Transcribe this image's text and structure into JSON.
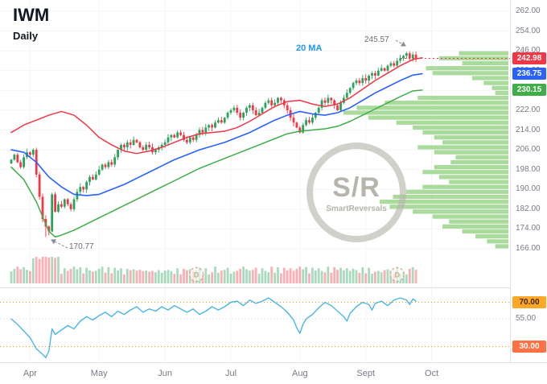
{
  "colors": {
    "up_candle": "#2aa25a",
    "down_candle": "#f23645",
    "ma20_line": "#2962ff",
    "upper_line": "#f23645",
    "lower_line": "#3fae49",
    "rsi_line": "#4db6e5",
    "volume_profile": "#9ed690",
    "axis_text": "#787b86",
    "grid": "#f2f4f7",
    "separator": "#e0e3eb",
    "annotation": "#8a8d97",
    "event_marker": "#cdb089",
    "watermark": "#b9b7ae"
  },
  "chart_data": {
    "type": "candlestick",
    "title": "IWM Daily",
    "symbol": "IWM",
    "timeframe": "Daily",
    "ma_label": "20 MA",
    "last_price": 242.98,
    "y_axis": {
      "ticks": [
        262,
        254,
        246,
        238,
        230,
        222,
        214,
        206,
        198,
        190,
        182,
        174,
        166
      ],
      "visible_range": [
        164,
        264
      ]
    },
    "x_axis": {
      "months": [
        {
          "label": "Apr",
          "index": 6
        },
        {
          "label": "May",
          "index": 28
        },
        {
          "label": "Jun",
          "index": 49
        },
        {
          "label": "Jul",
          "index": 70
        },
        {
          "label": "Aug",
          "index": 92
        },
        {
          "label": "Sept",
          "index": 113
        },
        {
          "label": "Oct",
          "index": 134
        }
      ]
    },
    "closes": [
      202,
      204,
      201,
      199,
      203,
      205,
      204,
      206,
      196,
      187,
      178,
      175,
      173,
      188,
      181,
      184,
      183,
      186,
      184,
      182,
      186,
      189,
      191,
      190,
      193,
      195,
      194,
      196,
      198,
      200,
      199,
      201,
      200,
      203,
      206,
      208,
      207,
      209,
      208,
      210,
      209,
      207,
      206,
      208,
      207,
      205,
      206,
      207,
      208,
      209,
      211,
      212,
      211,
      213,
      212,
      210,
      209,
      211,
      210,
      212,
      214,
      213,
      215,
      216,
      215,
      217,
      218,
      217,
      219,
      221,
      222,
      223,
      221,
      219,
      221,
      223,
      224,
      222,
      220,
      221,
      223,
      225,
      226,
      224,
      225,
      227,
      226,
      224,
      222,
      219,
      217,
      215,
      213,
      216,
      218,
      217,
      219,
      221,
      223,
      226,
      225,
      227,
      226,
      224,
      222,
      225,
      227,
      229,
      231,
      233,
      234,
      233,
      235,
      234,
      236,
      237,
      236,
      238,
      239,
      238,
      240,
      241,
      240,
      242,
      243,
      244,
      245,
      243,
      244.5,
      242.98
    ],
    "overlay_lines": {
      "ma20": {
        "name": "20 MA",
        "last_value": 236.75,
        "points": [
          [
            0,
            206
          ],
          [
            4,
            205
          ],
          [
            8,
            201
          ],
          [
            12,
            195
          ],
          [
            16,
            191
          ],
          [
            20,
            188
          ],
          [
            24,
            187.5
          ],
          [
            28,
            188
          ],
          [
            32,
            190
          ],
          [
            36,
            192
          ],
          [
            40,
            194.5
          ],
          [
            44,
            197
          ],
          [
            48,
            199.5
          ],
          [
            52,
            202
          ],
          [
            56,
            204
          ],
          [
            60,
            206
          ],
          [
            64,
            207.5
          ],
          [
            68,
            209
          ],
          [
            72,
            211
          ],
          [
            76,
            213
          ],
          [
            80,
            215.5
          ],
          [
            84,
            218
          ],
          [
            88,
            220
          ],
          [
            92,
            221.5
          ],
          [
            96,
            220.5
          ],
          [
            100,
            220
          ],
          [
            104,
            221
          ],
          [
            108,
            223
          ],
          [
            112,
            226
          ],
          [
            116,
            229
          ],
          [
            120,
            231.5
          ],
          [
            124,
            234
          ],
          [
            128,
            236.2
          ],
          [
            131,
            236.75
          ]
        ]
      },
      "upper": {
        "name": "upper band",
        "last_value": 243.2,
        "points": [
          [
            0,
            213
          ],
          [
            4,
            216
          ],
          [
            8,
            218
          ],
          [
            12,
            220
          ],
          [
            16,
            221.5
          ],
          [
            20,
            220
          ],
          [
            24,
            216
          ],
          [
            28,
            211
          ],
          [
            32,
            208
          ],
          [
            36,
            205.5
          ],
          [
            40,
            204.5
          ],
          [
            44,
            205.5
          ],
          [
            48,
            207
          ],
          [
            52,
            209
          ],
          [
            56,
            211
          ],
          [
            60,
            212.5
          ],
          [
            64,
            213
          ],
          [
            68,
            213.5
          ],
          [
            72,
            215
          ],
          [
            76,
            217.5
          ],
          [
            80,
            220.5
          ],
          [
            84,
            223.5
          ],
          [
            88,
            225.5
          ],
          [
            92,
            226
          ],
          [
            96,
            224.5
          ],
          [
            100,
            223.5
          ],
          [
            104,
            224.5
          ],
          [
            108,
            227
          ],
          [
            112,
            230.5
          ],
          [
            116,
            234
          ],
          [
            120,
            237
          ],
          [
            124,
            240
          ],
          [
            128,
            242.5
          ],
          [
            131,
            243.2
          ]
        ]
      },
      "lower": {
        "name": "lower band",
        "last_value": 230.15,
        "points": [
          [
            0,
            199
          ],
          [
            4,
            194
          ],
          [
            8,
            185
          ],
          [
            12,
            173
          ],
          [
            14,
            170.8
          ],
          [
            16,
            171.5
          ],
          [
            20,
            173.5
          ],
          [
            24,
            176
          ],
          [
            28,
            178.5
          ],
          [
            32,
            181
          ],
          [
            36,
            183.5
          ],
          [
            40,
            186
          ],
          [
            44,
            188.5
          ],
          [
            48,
            191
          ],
          [
            52,
            193.5
          ],
          [
            56,
            196
          ],
          [
            60,
            198.5
          ],
          [
            64,
            200.5
          ],
          [
            68,
            202.5
          ],
          [
            72,
            204.5
          ],
          [
            76,
            206.5
          ],
          [
            80,
            208.5
          ],
          [
            84,
            210.5
          ],
          [
            88,
            212.5
          ],
          [
            92,
            213.5
          ],
          [
            96,
            214
          ],
          [
            100,
            214.5
          ],
          [
            104,
            215.5
          ],
          [
            108,
            217.5
          ],
          [
            112,
            220
          ],
          [
            116,
            222.5
          ],
          [
            120,
            225
          ],
          [
            124,
            227.5
          ],
          [
            128,
            229.8
          ],
          [
            131,
            230.15
          ]
        ]
      }
    },
    "price_badges": [
      {
        "label": "242.98",
        "price": 242.98,
        "bg": "#f23645",
        "fg": "#ffffff"
      },
      {
        "label": "236.75",
        "price": 236.75,
        "bg": "#2962ff",
        "fg": "#ffffff"
      },
      {
        "label": "230.15",
        "price": 230.15,
        "bg": "#3fae49",
        "fg": "#ffffff"
      }
    ],
    "rsi": {
      "levels": {
        "upper": 70,
        "mid": 55,
        "lower": 30
      },
      "mid_label": "55.00",
      "badges": [
        {
          "label": "70.00",
          "level": 70,
          "bg": "#ffa726",
          "fg": "#40280a"
        },
        {
          "label": "30.00",
          "level": 30,
          "bg": "#ff7043",
          "fg": "#ffffff"
        }
      ],
      "points": [
        [
          0,
          55
        ],
        [
          2,
          50
        ],
        [
          4,
          44
        ],
        [
          6,
          38
        ],
        [
          8,
          28
        ],
        [
          10,
          23
        ],
        [
          11,
          20
        ],
        [
          12,
          26
        ],
        [
          13,
          46
        ],
        [
          14,
          41
        ],
        [
          16,
          45
        ],
        [
          18,
          49
        ],
        [
          20,
          46
        ],
        [
          22,
          53
        ],
        [
          24,
          57
        ],
        [
          26,
          54
        ],
        [
          28,
          58
        ],
        [
          30,
          61
        ],
        [
          32,
          57
        ],
        [
          34,
          62
        ],
        [
          36,
          59
        ],
        [
          38,
          63
        ],
        [
          40,
          66
        ],
        [
          42,
          61
        ],
        [
          44,
          64
        ],
        [
          46,
          62
        ],
        [
          48,
          66
        ],
        [
          50,
          63
        ],
        [
          52,
          67
        ],
        [
          54,
          64
        ],
        [
          56,
          61
        ],
        [
          58,
          64
        ],
        [
          60,
          59
        ],
        [
          62,
          62
        ],
        [
          64,
          66
        ],
        [
          66,
          63
        ],
        [
          68,
          66
        ],
        [
          70,
          70
        ],
        [
          72,
          71
        ],
        [
          74,
          67
        ],
        [
          76,
          72
        ],
        [
          78,
          69
        ],
        [
          80,
          71
        ],
        [
          82,
          74
        ],
        [
          84,
          70
        ],
        [
          86,
          66
        ],
        [
          88,
          61
        ],
        [
          90,
          54
        ],
        [
          91,
          47
        ],
        [
          92,
          42
        ],
        [
          93,
          50
        ],
        [
          94,
          55
        ],
        [
          96,
          59
        ],
        [
          98,
          65
        ],
        [
          100,
          70
        ],
        [
          102,
          67
        ],
        [
          104,
          62
        ],
        [
          106,
          57
        ],
        [
          107,
          53
        ],
        [
          108,
          60
        ],
        [
          110,
          66
        ],
        [
          112,
          70
        ],
        [
          114,
          68
        ],
        [
          115,
          63
        ],
        [
          116,
          69
        ],
        [
          118,
          71
        ],
        [
          120,
          67
        ],
        [
          122,
          72
        ],
        [
          124,
          74
        ],
        [
          126,
          72
        ],
        [
          127,
          68
        ],
        [
          128,
          73
        ],
        [
          129,
          71
        ]
      ]
    },
    "volume_profile": {
      "rows": [
        [
          245,
          0.3
        ],
        [
          243,
          0.42
        ],
        [
          241,
          0.28
        ],
        [
          239,
          0.5
        ],
        [
          237,
          0.46
        ],
        [
          235,
          0.22
        ],
        [
          233,
          0.15
        ],
        [
          231,
          0.1
        ],
        [
          229,
          0.08
        ],
        [
          227,
          0.55
        ],
        [
          225,
          0.75
        ],
        [
          223,
          0.92
        ],
        [
          221,
          1.0
        ],
        [
          219,
          0.85
        ],
        [
          217,
          0.68
        ],
        [
          215,
          0.58
        ],
        [
          213,
          0.52
        ],
        [
          211,
          0.45
        ],
        [
          209,
          0.4
        ],
        [
          207,
          0.55
        ],
        [
          205,
          0.45
        ],
        [
          203,
          0.32
        ],
        [
          201,
          0.35
        ],
        [
          199,
          0.45
        ],
        [
          197,
          0.52
        ],
        [
          195,
          0.42
        ],
        [
          193,
          0.36
        ],
        [
          191,
          0.52
        ],
        [
          189,
          0.62
        ],
        [
          187,
          0.7
        ],
        [
          185,
          0.78
        ],
        [
          183,
          0.72
        ],
        [
          181,
          0.58
        ],
        [
          179,
          0.46
        ],
        [
          177,
          0.36
        ],
        [
          175,
          0.4
        ],
        [
          173,
          0.28
        ],
        [
          171,
          0.2
        ],
        [
          169,
          0.13
        ],
        [
          167,
          0.08
        ]
      ]
    },
    "annotations": {
      "swing_high": {
        "label": "245.57",
        "index": 128,
        "price": 245.57
      },
      "swing_low": {
        "label": "170.77",
        "index": 11,
        "price": 170.77
      }
    },
    "event_markers": {
      "label": "D",
      "indices": [
        59,
        123
      ]
    },
    "watermark": {
      "big": "S/R",
      "small": "SmartReversals"
    }
  }
}
